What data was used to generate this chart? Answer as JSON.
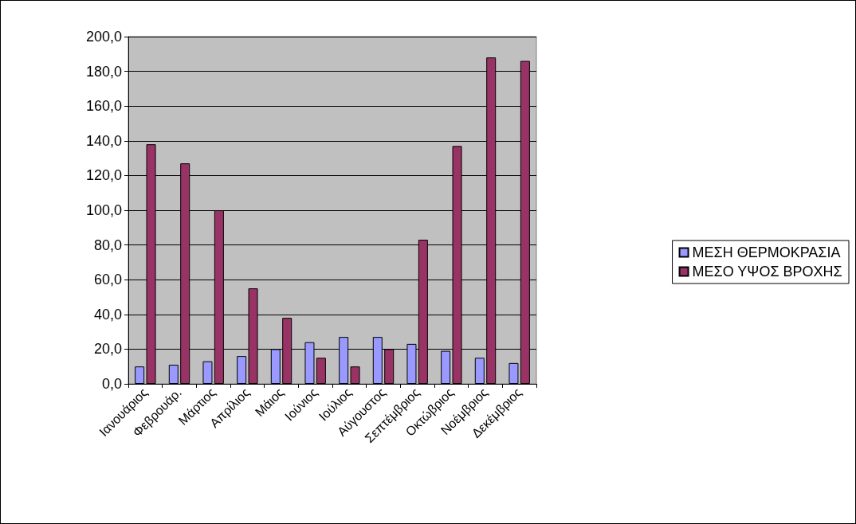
{
  "chart_data": {
    "type": "bar",
    "categories": [
      "Ιανουάριος",
      "Φεβρουάρ.",
      "Μάρτιος",
      "Απρίλιος",
      "Μάιος",
      "Ιούνιος",
      "Ιούλιος",
      "Αύγουστος",
      "Σεπτέμβριος",
      "Οκτώβριος",
      "Νοέμβριος",
      "Δεκέμβριος"
    ],
    "series": [
      {
        "name": "ΜΕΣΗ ΘΕΡΜΟΚΡΑΣΙΑ",
        "color": "#9999ff",
        "values": [
          10,
          11,
          13,
          16,
          20,
          24,
          27,
          27,
          23,
          19,
          15,
          12
        ]
      },
      {
        "name": "ΜΕΣΟ ΥΨΟΣ ΒΡΟΧΗΣ",
        "color": "#993366",
        "values": [
          138,
          127,
          100,
          55,
          38,
          15,
          10,
          20,
          83,
          137,
          188,
          186
        ]
      }
    ],
    "ylim": [
      0,
      200
    ],
    "yticks": [
      {
        "value": 0,
        "label": "0,0"
      },
      {
        "value": 20,
        "label": "20,0"
      },
      {
        "value": 40,
        "label": "40,0"
      },
      {
        "value": 60,
        "label": "60,0"
      },
      {
        "value": 80,
        "label": "80,0"
      },
      {
        "value": 100,
        "label": "100,0"
      },
      {
        "value": 120,
        "label": "120,0"
      },
      {
        "value": 140,
        "label": "140,0"
      },
      {
        "value": 160,
        "label": "160,0"
      },
      {
        "value": 180,
        "label": "180,0"
      },
      {
        "value": 200,
        "label": "200,0"
      }
    ],
    "grid": "y",
    "legend": "right"
  }
}
